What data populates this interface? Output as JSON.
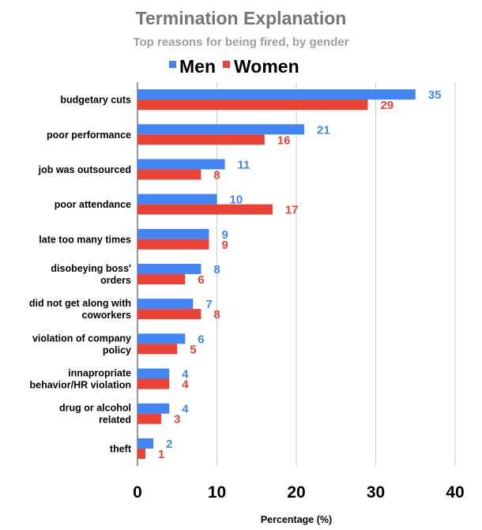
{
  "chart_data": {
    "type": "bar",
    "orientation": "horizontal",
    "title": "Termination Explanation",
    "subtitle": "Top reasons for being fired, by gender",
    "xlabel": "Percentage (%)",
    "ylabel": "",
    "xlim": [
      0,
      40
    ],
    "xticks": [
      0,
      10,
      20,
      30,
      40
    ],
    "grid": true,
    "legend_position": "top-center",
    "categories": [
      [
        "budgetary cuts"
      ],
      [
        "poor performance"
      ],
      [
        "job was outsourced"
      ],
      [
        "poor attendance"
      ],
      [
        "late too many times"
      ],
      [
        "disobeying boss'",
        "orders"
      ],
      [
        "did not get along with",
        "coworkers"
      ],
      [
        "violation of company",
        "policy"
      ],
      [
        "innapropriate",
        "behavior/HR violation"
      ],
      [
        "drug or alcohol",
        "related"
      ],
      [
        "theft"
      ]
    ],
    "series": [
      {
        "name": "Men",
        "color": "#4285f4",
        "values": [
          35,
          21,
          11,
          10,
          9,
          8,
          7,
          6,
          4,
          4,
          2
        ]
      },
      {
        "name": "Women",
        "color": "#ea4335",
        "values": [
          29,
          16,
          8,
          17,
          9,
          6,
          8,
          5,
          4,
          3,
          1
        ]
      }
    ]
  }
}
